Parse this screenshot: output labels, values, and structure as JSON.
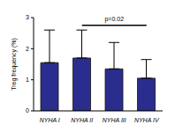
{
  "chart_data": {
    "type": "bar",
    "categories": [
      "NYHA I",
      "NYHA II",
      "NYHA III",
      "NYHA IV"
    ],
    "values": [
      1.55,
      1.7,
      1.35,
      1.05
    ],
    "error": [
      1.05,
      0.9,
      0.85,
      0.6
    ],
    "color": "#2b2d8e",
    "y_label": "Treg frequency (%)",
    "ylim": [
      0,
      3
    ],
    "yticks": [
      0,
      1,
      2,
      3
    ],
    "grid": false,
    "annotations": [
      {
        "text": "p=0.02",
        "from": "NYHA II",
        "to": "NYHA IV",
        "y": 2.75
      }
    ]
  }
}
